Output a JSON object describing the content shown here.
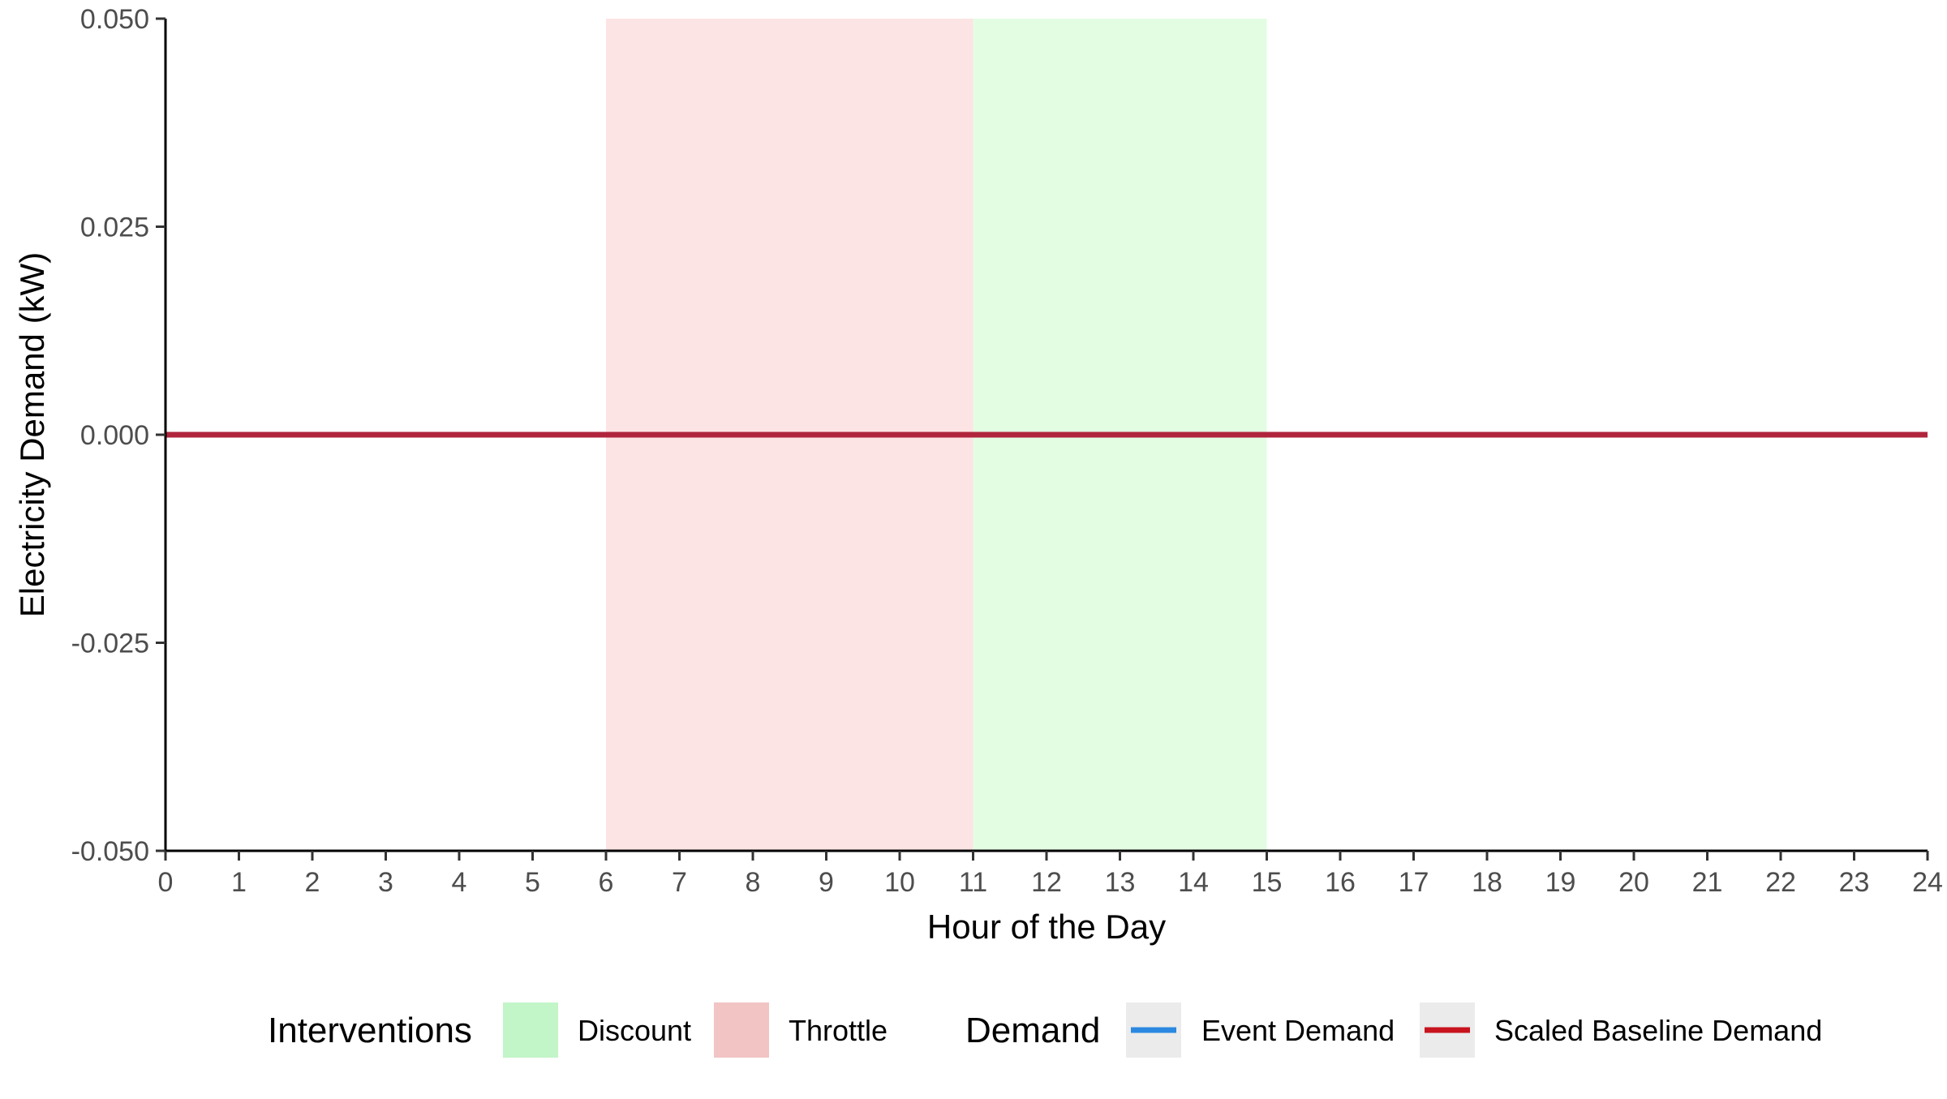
{
  "chart_data": {
    "type": "line",
    "xlabel": "Hour of the Day",
    "ylabel": "Electricity Demand (kW)",
    "xlim": [
      0,
      24
    ],
    "ylim": [
      -0.05,
      0.05
    ],
    "x_ticks": [
      0,
      1,
      2,
      3,
      4,
      5,
      6,
      7,
      8,
      9,
      10,
      11,
      12,
      13,
      14,
      15,
      16,
      17,
      18,
      19,
      20,
      21,
      22,
      23,
      24
    ],
    "y_ticks": [
      0.05,
      0.025,
      0,
      -0.025,
      -0.05
    ],
    "y_tick_labels": [
      "0.050",
      "0.025",
      "0.000",
      "-0.025",
      "-0.050"
    ],
    "grid": false,
    "legend_position": "bottom",
    "intervention_periods": [
      {
        "name": "Throttle",
        "start": 6,
        "end": 11,
        "color": "#fde4e4"
      },
      {
        "name": "Discount",
        "start": 11,
        "end": 15,
        "color": "#e3fde3"
      }
    ],
    "series": [
      {
        "name": "Event Demand",
        "color": "#2b88e0",
        "x": [
          0,
          24
        ],
        "values": [
          0,
          0
        ]
      },
      {
        "name": "Scaled Baseline Demand",
        "color": "#c8141e",
        "x": [
          0,
          24
        ],
        "values": [
          0,
          0
        ]
      }
    ],
    "legends": [
      {
        "title": "Interventions",
        "items": [
          {
            "label": "Discount",
            "kind": "fill",
            "color": "#c2f5c7"
          },
          {
            "label": "Throttle",
            "kind": "fill",
            "color": "#f2c4c4"
          }
        ]
      },
      {
        "title": "Demand",
        "items": [
          {
            "label": "Event Demand",
            "kind": "line",
            "color": "#2b88e0"
          },
          {
            "label": "Scaled Baseline Demand",
            "kind": "line",
            "color": "#c8141e"
          }
        ]
      }
    ]
  }
}
